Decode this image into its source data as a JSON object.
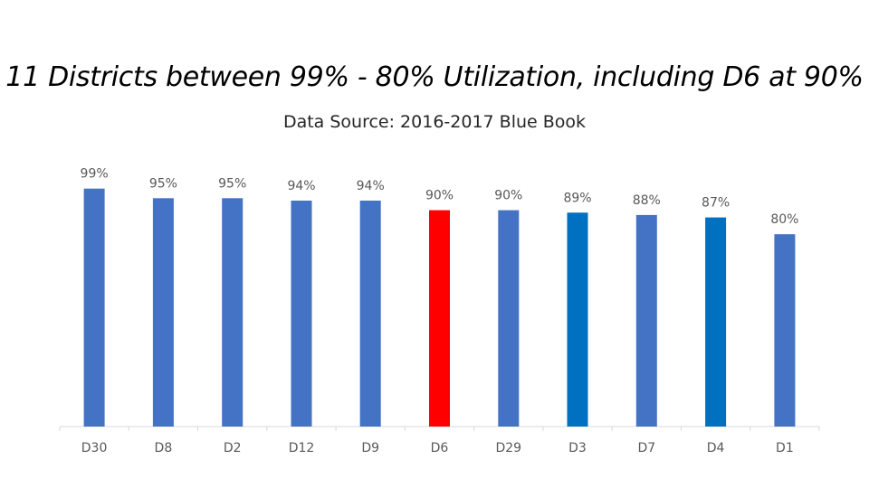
{
  "colors": {
    "default_bar": "#4472C4",
    "highlight_bar": "#FF0000",
    "alt_bar": "#0070C0",
    "axis": "#D9D9D9",
    "label": "#595959"
  },
  "chart_data": {
    "type": "bar",
    "title": "11 Districts between 99% - 80% Utilization, including D6 at 90%",
    "subtitle": "Data Source: 2016-2017 Blue Book",
    "categories": [
      "D30",
      "D8",
      "D2",
      "D12",
      "D9",
      "D6",
      "D29",
      "D3",
      "D7",
      "D4",
      "D1"
    ],
    "values": [
      99,
      95,
      95,
      94,
      94,
      90,
      90,
      89,
      88,
      87,
      80
    ],
    "data_labels": [
      "99%",
      "95%",
      "95%",
      "94%",
      "94%",
      "90%",
      "90%",
      "89%",
      "88%",
      "87%",
      "80%"
    ],
    "bar_colors": [
      "#4472C4",
      "#4472C4",
      "#4472C4",
      "#4472C4",
      "#4472C4",
      "#FF0000",
      "#4472C4",
      "#0070C0",
      "#4472C4",
      "#0070C0",
      "#4472C4"
    ],
    "ylim": [
      0,
      100
    ],
    "grid": false,
    "legend": "none"
  }
}
